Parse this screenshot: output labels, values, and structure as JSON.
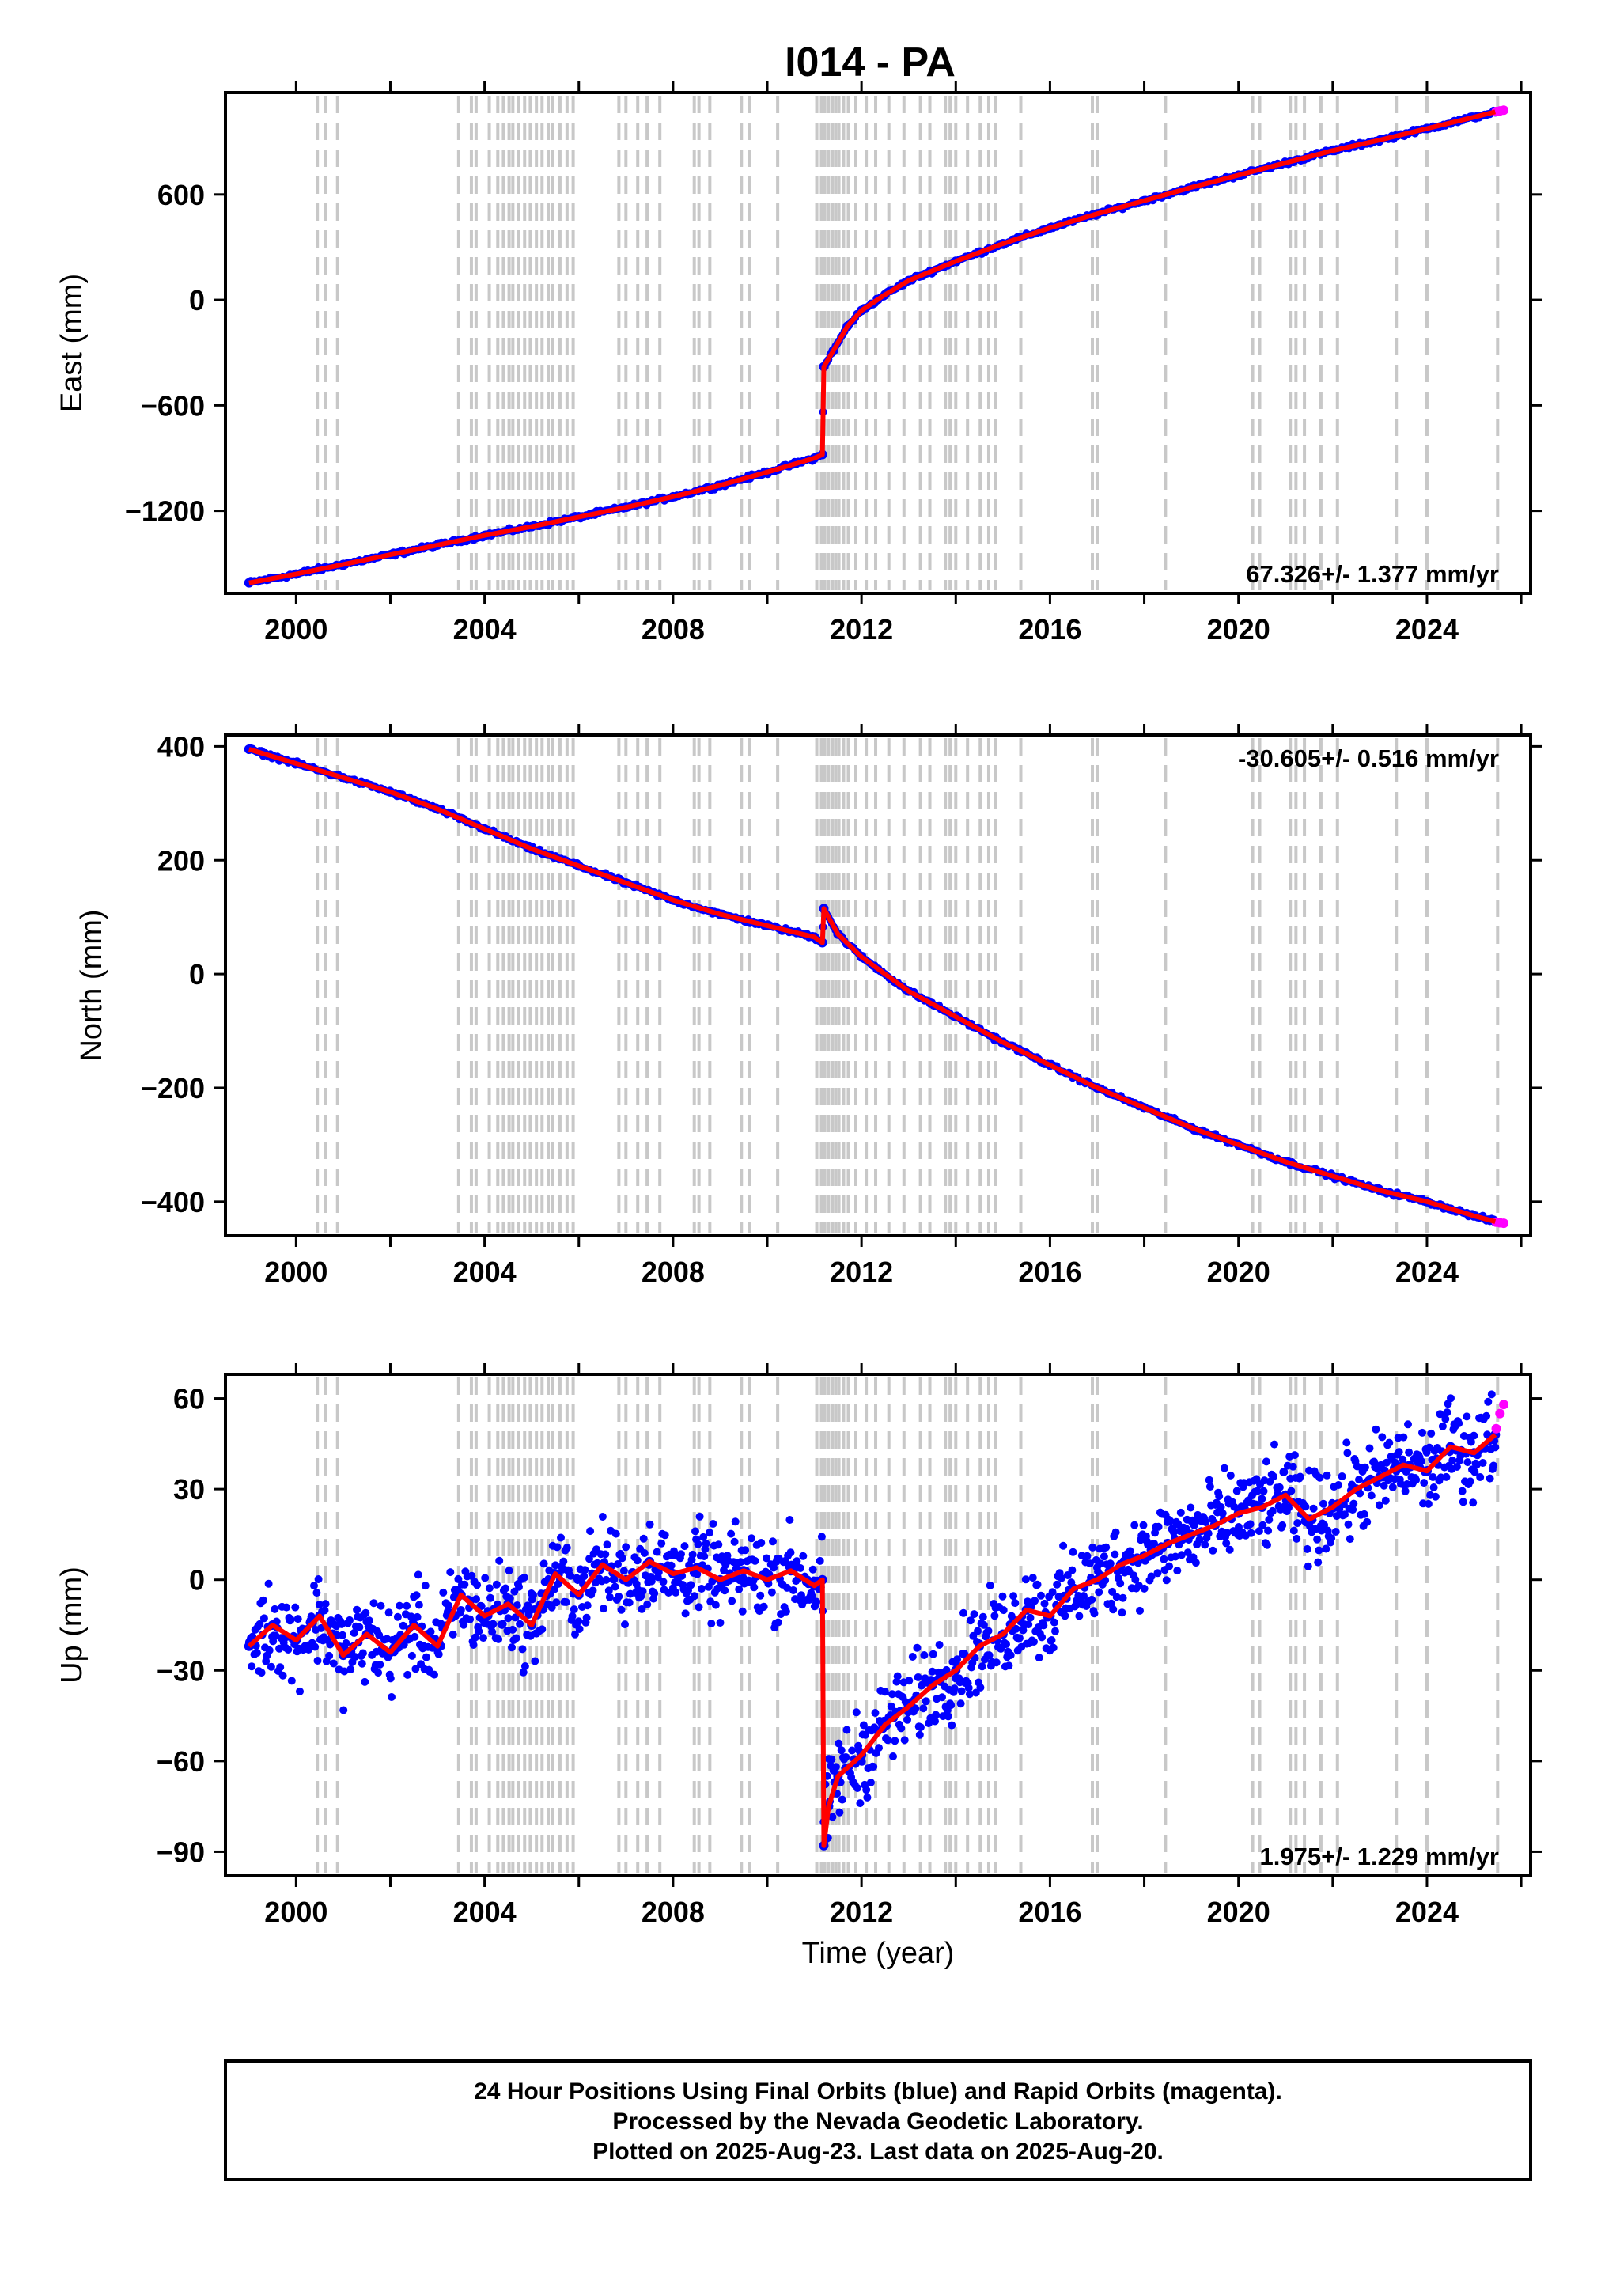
{
  "title": "I014 - PA",
  "colors": {
    "final_orbits": "#0000ff",
    "rapid_orbits": "#ff00ff",
    "model_fit": "#ff0000",
    "event_lines": "#c8c8c8",
    "frame": "#000000"
  },
  "event_years": [
    2000.45,
    2000.62,
    2000.88,
    2003.45,
    2003.72,
    2003.82,
    2004.1,
    2004.28,
    2004.4,
    2004.52,
    2004.6,
    2004.72,
    2004.85,
    2004.97,
    2005.1,
    2005.22,
    2005.35,
    2005.45,
    2005.6,
    2005.75,
    2005.88,
    2006.85,
    2007.0,
    2007.25,
    2007.45,
    2007.72,
    2008.45,
    2008.55,
    2008.78,
    2009.45,
    2009.62,
    2010.22,
    2011.05,
    2011.15,
    2011.22,
    2011.3,
    2011.38,
    2011.45,
    2011.52,
    2011.62,
    2011.72,
    2011.88,
    2012.1,
    2012.3,
    2012.58,
    2012.9,
    2013.25,
    2013.45,
    2013.78,
    2013.88,
    2014.0,
    2014.25,
    2014.52,
    2014.7,
    2014.85,
    2015.38,
    2016.9,
    2017.0,
    2018.45,
    2020.3,
    2020.45,
    2021.1,
    2021.22,
    2021.4,
    2021.75,
    2022.1,
    2023.35,
    2024.0,
    2025.5
  ],
  "chart_data": [
    {
      "type": "scatter",
      "component": "East",
      "ylabel": "East (mm)",
      "xlabel": "",
      "xlim": [
        1998.5,
        2026.2
      ],
      "ylim": [
        -1670,
        1180
      ],
      "xticks": [
        2000,
        2004,
        2008,
        2012,
        2016,
        2020,
        2024
      ],
      "yticks": [
        600,
        0,
        -600,
        -1200
      ],
      "ytick_labels": [
        "600",
        "0",
        "−600",
        "−1200"
      ],
      "rate_text": "67.326+/- 1.377 mm/yr",
      "rate_position": "bottom-right",
      "series": [
        {
          "name": "Final Orbits",
          "x": [
            1999.0,
            2000.0,
            2001.0,
            2002.0,
            2003.0,
            2004.0,
            2005.0,
            2006.0,
            2007.0,
            2008.0,
            2009.0,
            2010.0,
            2011.0,
            2011.17,
            2011.2,
            2011.4,
            2011.7,
            2012.0,
            2012.5,
            2013.0,
            2014.0,
            2015.0,
            2016.0,
            2017.0,
            2018.0,
            2019.0,
            2020.0,
            2021.0,
            2022.0,
            2023.0,
            2024.0,
            2025.0,
            2025.45
          ],
          "y": [
            -1610,
            -1560,
            -1505,
            -1450,
            -1395,
            -1340,
            -1290,
            -1235,
            -1180,
            -1120,
            -1055,
            -980,
            -900,
            -880,
            -380,
            -290,
            -150,
            -60,
            30,
            110,
            220,
            320,
            410,
            490,
            565,
            640,
            710,
            780,
            850,
            910,
            975,
            1040,
            1070
          ]
        },
        {
          "name": "Rapid Orbits",
          "x": [
            2025.47,
            2025.55,
            2025.63
          ],
          "y": [
            1072,
            1076,
            1080
          ]
        }
      ]
    },
    {
      "type": "scatter",
      "component": "North",
      "ylabel": "North (mm)",
      "xlabel": "",
      "xlim": [
        1998.5,
        2026.2
      ],
      "ylim": [
        -460,
        420
      ],
      "xticks": [
        2000,
        2004,
        2008,
        2012,
        2016,
        2020,
        2024
      ],
      "yticks": [
        400,
        200,
        0,
        -200,
        -400
      ],
      "ytick_labels": [
        "400",
        "200",
        "0",
        "−200",
        "−400"
      ],
      "rate_text": "-30.605+/- 0.516 mm/yr",
      "rate_position": "top-right",
      "series": [
        {
          "name": "Final Orbits",
          "x": [
            1999.0,
            2000.0,
            2001.0,
            2002.0,
            2003.0,
            2004.0,
            2005.0,
            2006.0,
            2007.0,
            2008.0,
            2009.0,
            2010.0,
            2011.0,
            2011.17,
            2011.2,
            2011.5,
            2012.0,
            2013.0,
            2014.0,
            2015.0,
            2016.0,
            2017.0,
            2018.0,
            2019.0,
            2020.0,
            2021.0,
            2022.0,
            2023.0,
            2024.0,
            2025.0,
            2025.45
          ],
          "y": [
            395,
            370,
            345,
            320,
            290,
            255,
            220,
            190,
            160,
            130,
            105,
            85,
            65,
            55,
            115,
            70,
            30,
            -30,
            -75,
            -120,
            -160,
            -200,
            -235,
            -270,
            -300,
            -330,
            -355,
            -380,
            -400,
            -425,
            -435
          ]
        },
        {
          "name": "Rapid Orbits",
          "x": [
            2025.47,
            2025.55,
            2025.63
          ],
          "y": [
            -436,
            -437,
            -438
          ]
        }
      ]
    },
    {
      "type": "scatter",
      "component": "Up",
      "ylabel": "Up (mm)",
      "xlabel": "Time (year)",
      "xlim": [
        1998.5,
        2026.2
      ],
      "ylim": [
        -98,
        68
      ],
      "xticks": [
        2000,
        2004,
        2008,
        2012,
        2016,
        2020,
        2024
      ],
      "yticks": [
        60,
        30,
        0,
        -30,
        -60,
        -90
      ],
      "ytick_labels": [
        "60",
        "30",
        "0",
        "−30",
        "−60",
        "−90"
      ],
      "rate_text": "1.975+/- 1.229 mm/yr",
      "rate_position": "bottom-right",
      "series": [
        {
          "name": "Final Orbits",
          "x": [
            1999.0,
            1999.5,
            2000.0,
            2000.5,
            2001.0,
            2001.5,
            2002.0,
            2002.5,
            2003.0,
            2003.5,
            2004.0,
            2004.5,
            2005.0,
            2005.5,
            2006.0,
            2006.5,
            2007.0,
            2007.5,
            2008.0,
            2008.5,
            2009.0,
            2009.5,
            2010.0,
            2010.5,
            2011.0,
            2011.17,
            2011.2,
            2011.3,
            2011.5,
            2012.0,
            2012.5,
            2013.0,
            2013.5,
            2014.0,
            2014.5,
            2015.0,
            2015.5,
            2016.0,
            2016.5,
            2017.0,
            2017.5,
            2018.0,
            2018.5,
            2019.0,
            2019.5,
            2020.0,
            2020.5,
            2021.0,
            2021.5,
            2022.0,
            2022.5,
            2023.0,
            2023.5,
            2024.0,
            2024.5,
            2025.0,
            2025.45
          ],
          "y": [
            -22,
            -15,
            -20,
            -12,
            -25,
            -18,
            -24,
            -15,
            -22,
            -5,
            -12,
            -8,
            -15,
            2,
            -5,
            5,
            0,
            6,
            2,
            4,
            0,
            3,
            0,
            3,
            -2,
            0,
            -88,
            -75,
            -65,
            -58,
            -48,
            -42,
            -35,
            -30,
            -22,
            -18,
            -10,
            -12,
            -3,
            0,
            5,
            8,
            12,
            15,
            18,
            22,
            24,
            28,
            20,
            24,
            30,
            34,
            38,
            36,
            44,
            42,
            48
          ]
        },
        {
          "name": "Rapid Orbits",
          "x": [
            2025.47,
            2025.55,
            2025.63
          ],
          "y": [
            50,
            55,
            58
          ]
        }
      ]
    }
  ],
  "footer": {
    "line1": "24 Hour Positions Using Final Orbits (blue) and Rapid Orbits (magenta).",
    "line2": "Processed by the Nevada Geodetic Laboratory.",
    "line3": "Plotted on 2025-Aug-23. Last data on 2025-Aug-20."
  }
}
